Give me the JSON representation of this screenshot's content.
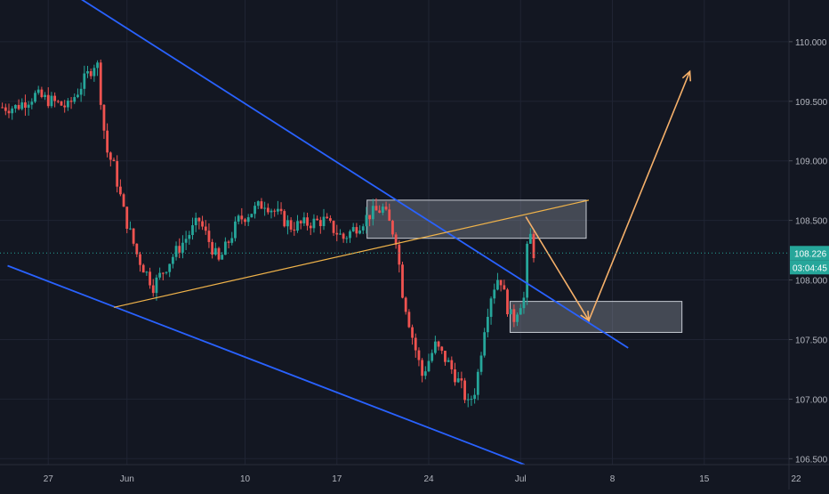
{
  "chart_data": {
    "type": "candlestick",
    "title": "",
    "xlabel": "",
    "ylabel": "",
    "ylim": [
      106.45,
      110.35
    ],
    "x_ticks": [
      {
        "label": "27",
        "day": -5
      },
      {
        "label": "Jun",
        "day": 1
      },
      {
        "label": "10",
        "day": 10
      },
      {
        "label": "17",
        "day": 17
      },
      {
        "label": "24",
        "day": 24
      },
      {
        "label": "Jul",
        "day": 31
      },
      {
        "label": "8",
        "day": 38
      },
      {
        "label": "15",
        "day": 45
      },
      {
        "label": "22",
        "day": 52
      }
    ],
    "y_ticks": [
      106.5,
      107.0,
      107.5,
      108.0,
      108.5,
      109.0,
      109.5,
      110.0
    ],
    "y_tick_labels": [
      "106.500",
      "107.000",
      "107.500",
      "108.000",
      "108.500",
      "109.000",
      "109.500",
      "110.000"
    ],
    "current_price": 108.226,
    "current_price_label": "108.226",
    "countdown_label": "03:04:45",
    "grid": true,
    "colors": {
      "background": "#131722",
      "grid": "#1f2433",
      "axis_text": "#b2b5be",
      "up": "#26a69a",
      "down": "#ef5350",
      "channel": "#2962ff",
      "trendline": "#f0b34a",
      "projection": "#f5b06a",
      "zone_fill": "rgba(160,166,178,0.35)",
      "zone_stroke": "#c8ccd4",
      "price_label_bg": "#26a69a"
    },
    "key_closes": [
      {
        "day": -7.5,
        "close": 109.45
      },
      {
        "day": -6,
        "close": 109.55
      },
      {
        "day": -3.5,
        "close": 109.45
      },
      {
        "day": -1.3,
        "close": 109.85
      },
      {
        "day": -0.6,
        "close": 109.1
      },
      {
        "day": 0,
        "close": 108.95
      },
      {
        "day": 0.8,
        "close": 108.55
      },
      {
        "day": 1.8,
        "close": 108.2
      },
      {
        "day": 3,
        "close": 107.95
      },
      {
        "day": 4.5,
        "close": 108.2
      },
      {
        "day": 6.5,
        "close": 108.5
      },
      {
        "day": 8,
        "close": 108.15
      },
      {
        "day": 9.5,
        "close": 108.5
      },
      {
        "day": 11.5,
        "close": 108.65
      },
      {
        "day": 13.5,
        "close": 108.45
      },
      {
        "day": 16,
        "close": 108.5
      },
      {
        "day": 17.5,
        "close": 108.35
      },
      {
        "day": 19.5,
        "close": 108.55
      },
      {
        "day": 20.5,
        "close": 108.6
      },
      {
        "day": 21.5,
        "close": 108.35
      },
      {
        "day": 22,
        "close": 107.9
      },
      {
        "day": 22.8,
        "close": 107.5
      },
      {
        "day": 23.5,
        "close": 107.2
      },
      {
        "day": 24.5,
        "close": 107.45
      },
      {
        "day": 25.5,
        "close": 107.3
      },
      {
        "day": 26.5,
        "close": 107.1
      },
      {
        "day": 27,
        "close": 106.95
      },
      {
        "day": 27.6,
        "close": 107.1
      },
      {
        "day": 28.3,
        "close": 107.65
      },
      {
        "day": 28.8,
        "close": 107.9
      },
      {
        "day": 29.4,
        "close": 108.05
      },
      {
        "day": 29.9,
        "close": 107.8
      },
      {
        "day": 30.4,
        "close": 107.65
      },
      {
        "day": 30.9,
        "close": 107.8
      },
      {
        "day": 31.3,
        "close": 107.85
      },
      {
        "day": 31.6,
        "close": 108.45
      },
      {
        "day": 32.05,
        "close": 108.2
      }
    ],
    "drawings": {
      "channel_upper": {
        "p1": {
          "day": -5.95,
          "price": 110.6
        },
        "p2": {
          "day": 39.2,
          "price": 107.43
        }
      },
      "channel_lower": {
        "p1": {
          "day": -8.1,
          "price": 108.12
        },
        "p2": {
          "day": 31.3,
          "price": 106.45
        }
      },
      "rising_trendline": {
        "p1": {
          "day": 0,
          "price": 107.77
        },
        "p2": {
          "day": 36.2,
          "price": 108.67
        }
      },
      "supply_zone": {
        "day_start": 19.3,
        "day_end": 36.0,
        "price_top": 108.67,
        "price_bottom": 108.35
      },
      "demand_zone": {
        "day_start": 30.2,
        "day_end": 43.3,
        "price_top": 107.82,
        "price_bottom": 107.56
      },
      "projection_path": [
        {
          "day": 31.4,
          "price": 108.53
        },
        {
          "day": 36.2,
          "price": 107.66
        },
        {
          "day": 43.9,
          "price": 109.75
        }
      ]
    }
  }
}
